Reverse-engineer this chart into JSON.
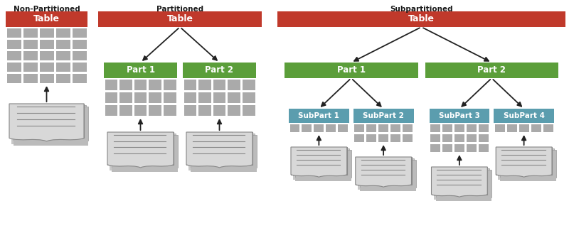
{
  "red_color": "#c0392b",
  "green_color": "#5b9e3a",
  "teal_color": "#5b9dae",
  "gray_cell": "#aaaaaa",
  "arrow_color": "#222222",
  "text_dark": "#1a1a1a",
  "figsize": [
    8.0,
    3.28
  ],
  "dpi": 100,
  "titles": {
    "non_part": "Non-Partitioned",
    "part": "Partitioned",
    "subpart": "Subpartitioned"
  },
  "labels": {
    "table": "Table",
    "part1": "Part 1",
    "part2": "Part 2",
    "sub1": "SubPart 1",
    "sub2": "SubPart 2",
    "sub3": "SubPart 3",
    "sub4": "SubPart 4"
  }
}
